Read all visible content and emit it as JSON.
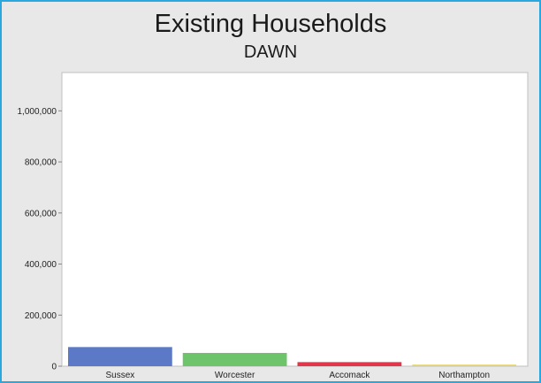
{
  "chart_data": {
    "type": "bar",
    "title": "Existing Households",
    "subtitle": "DAWN",
    "categories": [
      "Sussex",
      "Worcester",
      "Accomack",
      "Northampton"
    ],
    "values": [
      75000,
      52000,
      16000,
      6000
    ],
    "colors": [
      "#5b79c6",
      "#6ec46a",
      "#e5354a",
      "#e6d35a"
    ],
    "ylim": [
      0,
      1150000
    ],
    "yticks": [
      0,
      200000,
      400000,
      600000,
      800000,
      1000000
    ],
    "ytick_labels": [
      "0",
      "200,000",
      "400,000",
      "600,000",
      "800,000",
      "1,000,000"
    ],
    "xlabel": "",
    "ylabel": "",
    "grid": false,
    "legend": "none"
  }
}
